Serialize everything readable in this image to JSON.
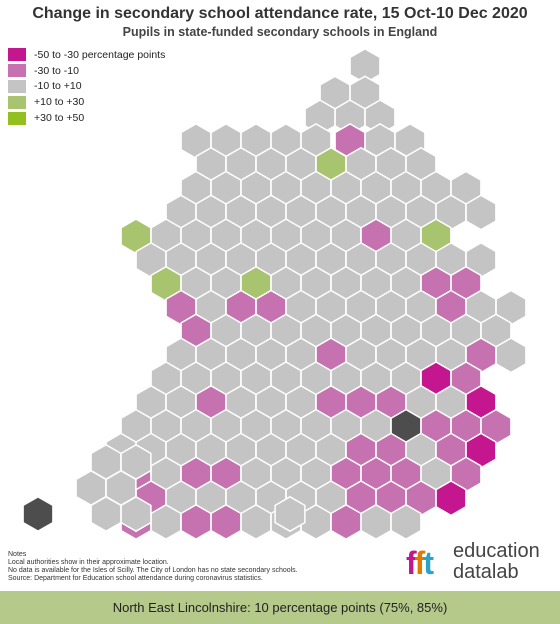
{
  "title": "Change in secondary school attendance rate, 15 Oct-10 Dec 2020",
  "subtitle": "Pupils in state-funded secondary schools in England",
  "legend": [
    {
      "label": "-50 to -30 percentage points",
      "color": "#c3168f"
    },
    {
      "label": "-30 to -10",
      "color": "#c672b1"
    },
    {
      "label": "-10 to +10",
      "color": "#c4c4c4"
    },
    {
      "label": "+10 to +30",
      "color": "#a9c46f"
    },
    {
      "label": "+30 to +50",
      "color": "#93c01f"
    }
  ],
  "notes": [
    "Notes",
    "Local authorities show in their approximate location.",
    "No data is available for the Isles of Scilly. The City of London has no state secondary schools.",
    "Source: Department for Education school attendance during coronavirus statistics."
  ],
  "logo": {
    "mark": "fft",
    "line1": "education",
    "line2": "datalab"
  },
  "footer": "North East Lincolnshire: 10 percentage points (75%, 85%)",
  "chart_data": {
    "type": "hexmap",
    "selected_area": "North East Lincolnshire",
    "selected_value_pp": 10,
    "categories": [
      "-50 to -30",
      "-30 to -10",
      "-10 to +10",
      "+10 to +30",
      "+30 to +50"
    ],
    "category_colors": {
      "vn": "#c3168f",
      "n": "#c672b1",
      "g": "#c4c4c4",
      "p": "#a9c46f",
      "vp": "#93c01f",
      "d": "#4d4d4d"
    },
    "rows": [
      [
        "g"
      ],
      [
        "g"
      ],
      [
        "g",
        "g"
      ],
      [
        "g",
        "g"
      ],
      [
        "g",
        "g",
        "g"
      ],
      [
        "n",
        "g",
        "g"
      ],
      [
        "g",
        "g",
        "g",
        "g",
        "g",
        "g",
        "g",
        "g"
      ],
      [
        "g",
        "g",
        "g",
        "g",
        "p",
        "g",
        "g",
        "g"
      ],
      [
        "g",
        "g",
        "g",
        "g",
        "g",
        "g",
        "g",
        "g",
        "g",
        "g"
      ],
      [
        "g",
        "g",
        "g",
        "g",
        "g",
        "g",
        "g",
        "g",
        "g",
        "g",
        "g"
      ],
      [
        "p",
        "g",
        "g",
        "g",
        "g",
        "g",
        "g",
        "g",
        "n",
        "g",
        "p"
      ],
      [
        "g",
        "g",
        "g",
        "g",
        "g",
        "g",
        "g",
        "g",
        "g",
        "g",
        "g",
        "g"
      ],
      [
        "p",
        "g",
        "g",
        "p",
        "g",
        "g",
        "g",
        "g",
        "g",
        "n",
        "n"
      ],
      [
        "n",
        "g",
        "n",
        "n",
        "g",
        "g",
        "g",
        "g",
        "g",
        "n",
        "g",
        "g"
      ],
      [
        "n",
        "g",
        "g",
        "g",
        "g",
        "g",
        "g",
        "g",
        "g",
        "g",
        "g"
      ],
      [
        "g",
        "g",
        "g",
        "g",
        "g",
        "n",
        "g",
        "g",
        "g",
        "g",
        "n",
        "g"
      ],
      [
        "g",
        "g",
        "g",
        "g",
        "g",
        "g",
        "g",
        "g",
        "g",
        "vn",
        "n"
      ],
      [
        "g",
        "g",
        "n",
        "g",
        "g",
        "g",
        "n",
        "n",
        "n",
        "g",
        "g",
        "vn"
      ],
      [
        "g",
        "g",
        "g",
        "g",
        "g",
        "g",
        "g",
        "g",
        "g",
        "d",
        "n",
        "n",
        "n"
      ],
      [
        "g",
        "g",
        "g",
        "g",
        "g",
        "g",
        "g",
        "g",
        "n",
        "n",
        "g",
        "n",
        "vn"
      ],
      [
        "n",
        "g",
        "n",
        "n",
        "g",
        "g",
        "g",
        "n",
        "n",
        "n",
        "g",
        "n"
      ],
      [
        "n",
        "g",
        "g",
        "g",
        "g",
        "g",
        "g",
        "n",
        "n",
        "n",
        "vn"
      ],
      [
        "n",
        "g",
        "n",
        "n",
        "g",
        "g",
        "g",
        "n",
        "g",
        "g"
      ],
      [
        "g",
        "g"
      ],
      [
        "g",
        "g"
      ],
      [
        "g",
        "g"
      ],
      [
        "d",
        "g",
        "g"
      ]
    ]
  }
}
